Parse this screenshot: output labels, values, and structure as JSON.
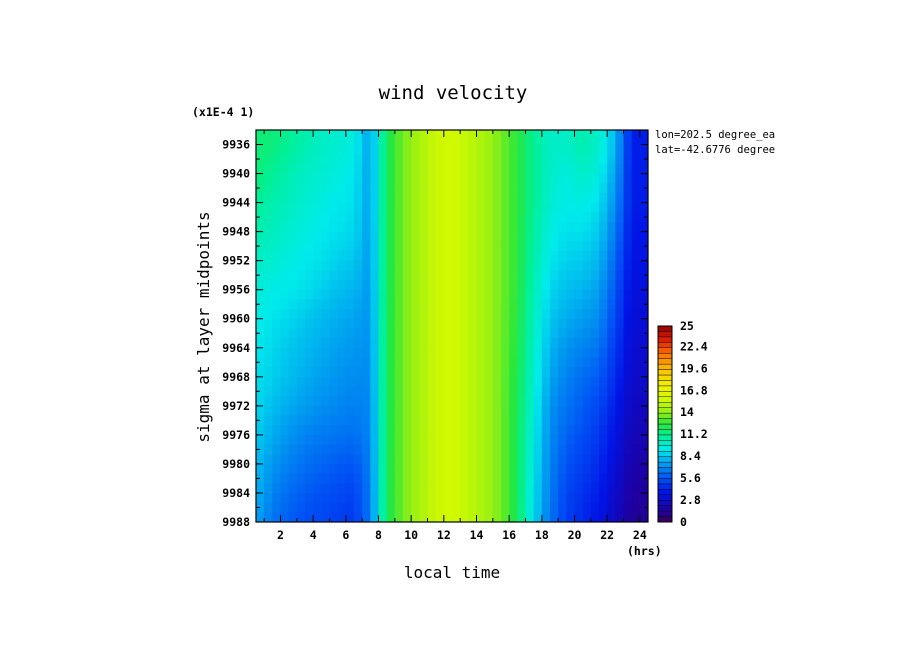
{
  "chart_data": {
    "type": "heatmap",
    "title": "wind velocity",
    "xlabel": "local time",
    "ylabel": "sigma at layer midpoints",
    "x_units": "(hrs)",
    "y_scale_label": "(x1E-4 1)",
    "annotations": [
      "lon=202.5 degree_ea",
      "lat=-42.6776 degree"
    ],
    "xlim": [
      0.5,
      24.5
    ],
    "ylim": [
      9988,
      9934
    ],
    "x_ticks": [
      "2",
      "4",
      "6",
      "8",
      "10",
      "12",
      "14",
      "16",
      "18",
      "20",
      "22",
      "24"
    ],
    "y_ticks": [
      "9936",
      "9940",
      "9944",
      "9948",
      "9952",
      "9956",
      "9960",
      "9964",
      "9968",
      "9972",
      "9976",
      "9980",
      "9984",
      "9988"
    ],
    "colorbar": {
      "min": 0,
      "max": 25,
      "ticks": [
        "25",
        "22.4",
        "19.6",
        "16.8",
        "14",
        "11.2",
        "8.4",
        "5.6",
        "2.8",
        "0"
      ]
    },
    "x": [
      0.5,
      1.5,
      2.5,
      3.5,
      4.5,
      5.5,
      6.5,
      7.5,
      8.5,
      9.5,
      10.5,
      11.5,
      12.5,
      13.5,
      14.5,
      15.5,
      16.5,
      17.5,
      18.5,
      19.5,
      20.5,
      21.5,
      22.5,
      23.5
    ],
    "y": [
      9934,
      9936,
      9940,
      9944,
      9948,
      9952,
      9956,
      9960,
      9964,
      9968,
      9972,
      9976,
      9980,
      9984,
      9988
    ],
    "z": [
      [
        11.5,
        11.5,
        11,
        10.5,
        10,
        9.8,
        9.5,
        7.5,
        12,
        13.5,
        14.5,
        15.5,
        15.8,
        15.2,
        14.5,
        13.5,
        12.5,
        11,
        10,
        10,
        10.5,
        10,
        8,
        4
      ],
      [
        11.5,
        11.5,
        11,
        10.5,
        10,
        9.8,
        9.5,
        7.5,
        12,
        13.5,
        14.5,
        15.5,
        15.8,
        15.2,
        14.5,
        13.5,
        12.5,
        11,
        10,
        10,
        10.5,
        10,
        8,
        4
      ],
      [
        11.5,
        11,
        10.5,
        10,
        9.8,
        9.5,
        9.2,
        7.5,
        12,
        13.5,
        14.5,
        15.5,
        15.8,
        15.2,
        14.5,
        13.5,
        12.5,
        11,
        10,
        9.5,
        10,
        9.5,
        7.5,
        4
      ],
      [
        11,
        10.5,
        10.2,
        9.8,
        9.5,
        9.2,
        9,
        7.5,
        12,
        13.5,
        14.5,
        15.5,
        15.8,
        15.2,
        14.5,
        13.5,
        12.5,
        11,
        9.8,
        9.3,
        9.5,
        9,
        7,
        4
      ],
      [
        10.5,
        10.2,
        9.8,
        9.5,
        9.2,
        9,
        8.8,
        7.4,
        12,
        13.5,
        14.5,
        15.5,
        15.8,
        15.2,
        14.5,
        13.5,
        12.5,
        10.8,
        9.5,
        9,
        9,
        8.5,
        6.5,
        3.8
      ],
      [
        10,
        9.8,
        9.5,
        9.2,
        9,
        8.6,
        8.4,
        7.4,
        12,
        13.5,
        14.5,
        15.5,
        15.8,
        15.2,
        14.5,
        13.5,
        12.5,
        10.6,
        9.2,
        8.6,
        8.5,
        8,
        6,
        3.6
      ],
      [
        9.6,
        9.4,
        9.2,
        9,
        8.6,
        8.2,
        8,
        7.3,
        12,
        13.5,
        14.5,
        15.5,
        15.8,
        15.2,
        14.5,
        13.5,
        12.5,
        10.4,
        8.8,
        8.2,
        8,
        7.5,
        5.6,
        3.4
      ],
      [
        9.4,
        9.1,
        8.8,
        8.4,
        8.1,
        7.8,
        7.6,
        7.2,
        12,
        13.5,
        14.5,
        15.5,
        15.8,
        15.2,
        14.5,
        13.5,
        12.4,
        10.2,
        8.4,
        7.8,
        7.4,
        7,
        5.2,
        3.2
      ],
      [
        9.2,
        8.8,
        8.4,
        8.1,
        7.8,
        7.5,
        7.3,
        7.1,
        12,
        13.5,
        14.5,
        15.5,
        15.8,
        15.2,
        14.5,
        13.5,
        12.3,
        10,
        8,
        7.2,
        6.8,
        6.4,
        4.8,
        3
      ],
      [
        9,
        8.6,
        8.2,
        7.8,
        7.5,
        7.2,
        7,
        7,
        12,
        13.5,
        14.5,
        15.5,
        15.8,
        15.2,
        14.5,
        13.5,
        12.2,
        9.8,
        7.6,
        6.8,
        6.2,
        5.8,
        4.4,
        2.8
      ],
      [
        8.8,
        8.2,
        7.8,
        7.4,
        7.1,
        6.9,
        6.7,
        6.9,
        12,
        13.5,
        14.5,
        15.5,
        15.8,
        15.2,
        14.5,
        13.5,
        12.1,
        9.6,
        7.2,
        6.4,
        5.8,
        5.2,
        4,
        2.5
      ],
      [
        8.5,
        7.8,
        7.2,
        6.8,
        6.6,
        6.4,
        6.3,
        6.8,
        12,
        13.5,
        14.5,
        15.5,
        15.8,
        15.2,
        14.5,
        13.5,
        12,
        9.4,
        7,
        6,
        5.4,
        4.8,
        3.6,
        2.2
      ],
      [
        8.2,
        7.3,
        6.7,
        6.3,
        6,
        5.8,
        5.6,
        6.7,
        12,
        13.5,
        14.5,
        15.5,
        15.8,
        15.2,
        14.5,
        13.5,
        12,
        9.2,
        6.8,
        5.6,
        5,
        4.4,
        3.2,
        1.8
      ],
      [
        7.9,
        6.8,
        6.2,
        5.8,
        5.5,
        5.3,
        5.1,
        6.6,
        12,
        13.5,
        14.5,
        15.5,
        15.8,
        15.2,
        14.5,
        13.5,
        12,
        9,
        6.6,
        5.2,
        4.6,
        4,
        2.8,
        1.5
      ],
      [
        7.6,
        6.4,
        5.8,
        5.4,
        5.2,
        5,
        4.8,
        6.5,
        12,
        13.5,
        14.5,
        15.5,
        15.8,
        15.2,
        14.5,
        13.5,
        12,
        8.8,
        6.4,
        5,
        4.3,
        3.6,
        2.5,
        1.3
      ]
    ]
  }
}
